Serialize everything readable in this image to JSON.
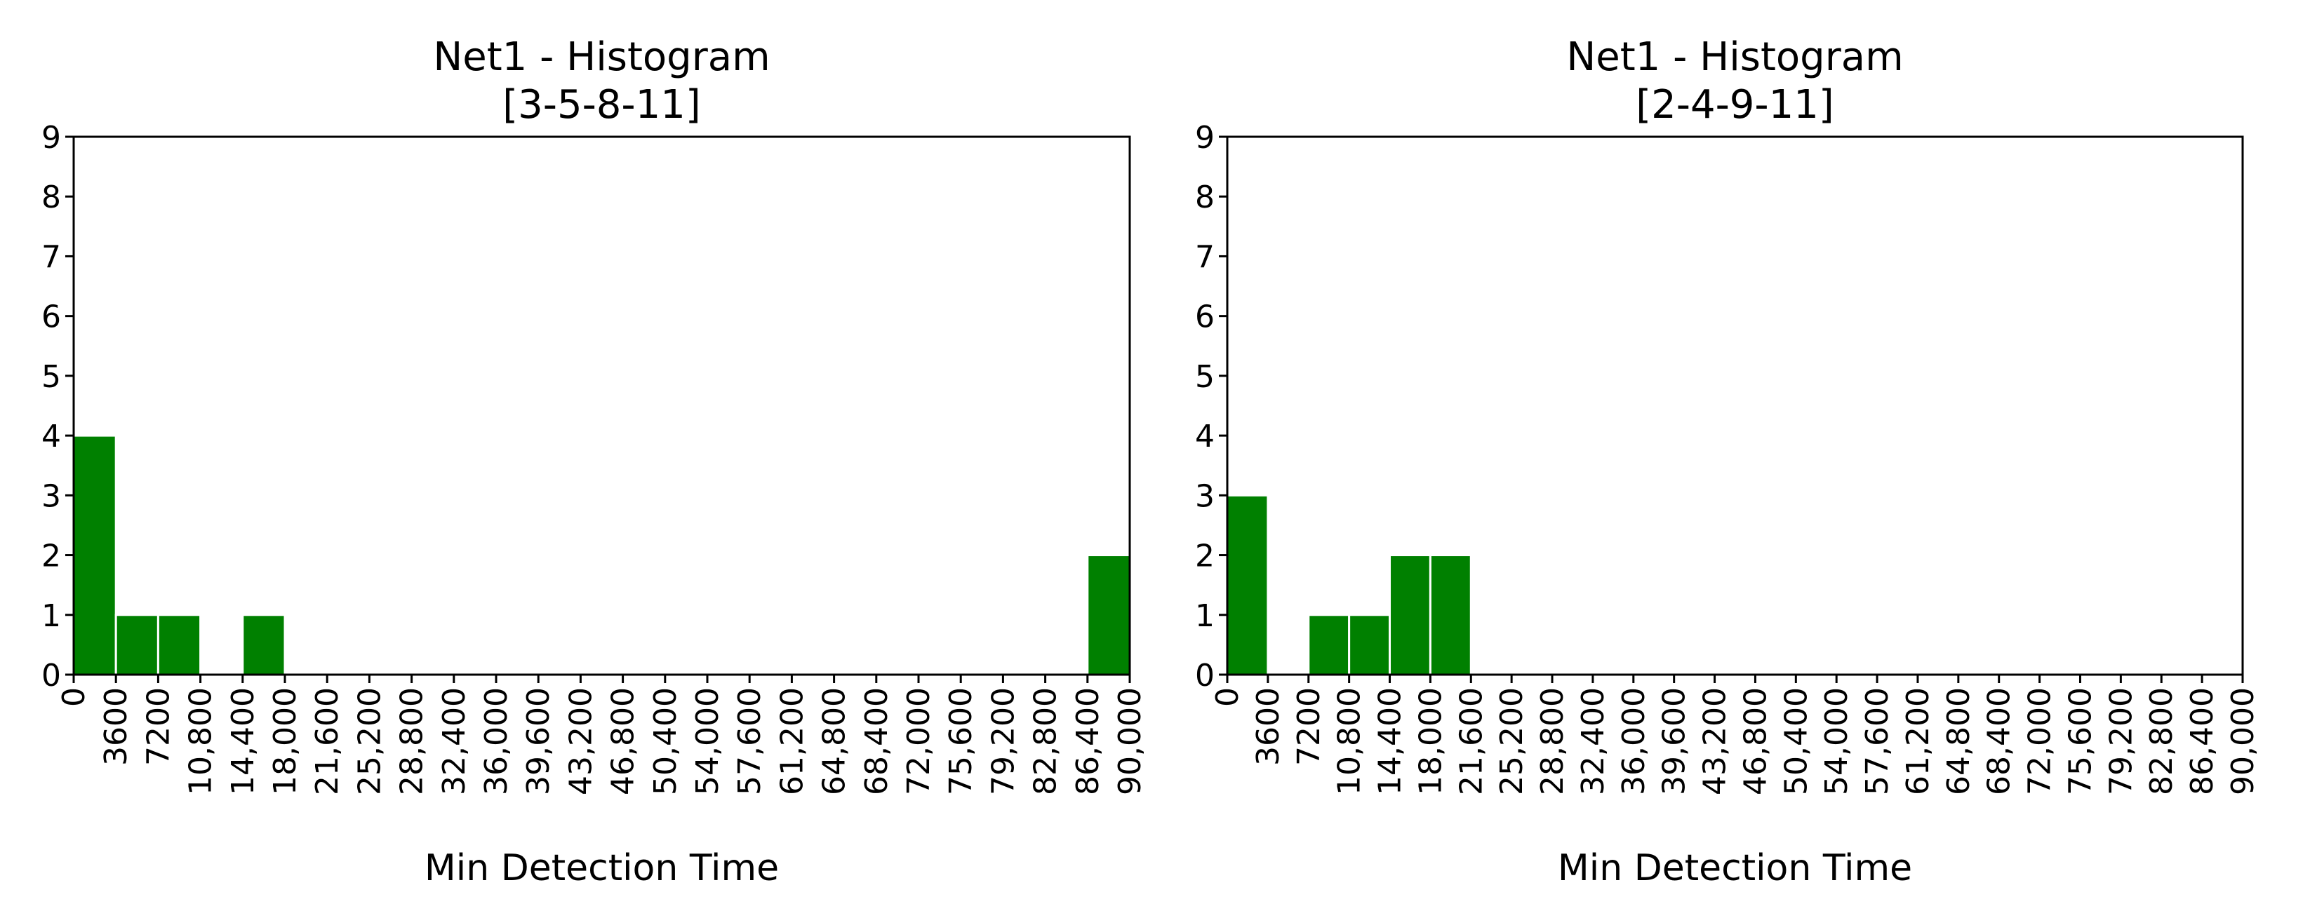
{
  "chart_data": [
    {
      "type": "histogram",
      "title": "Net1 - Histogram",
      "subtitle": "[3-5-8-11]",
      "x_label": "Min Detection Time",
      "color": "#008000",
      "bins": [
        0,
        3600,
        7200,
        10800,
        14400,
        18000,
        21600,
        25200,
        28800,
        32400,
        36000,
        39600,
        43200,
        46800,
        50400,
        54000,
        57600,
        61200,
        64800,
        68400,
        72000,
        75600,
        79200,
        82800,
        86400,
        90000
      ],
      "values": [
        4,
        1,
        1,
        0,
        1,
        0,
        0,
        0,
        0,
        0,
        0,
        0,
        0,
        0,
        0,
        0,
        0,
        0,
        0,
        0,
        0,
        0,
        0,
        0,
        2
      ],
      "xlim": [
        0,
        90000
      ],
      "ylim": [
        0,
        9
      ],
      "yticks": [
        0,
        1,
        2,
        3,
        4,
        5,
        6,
        7,
        8,
        9
      ],
      "xticks": [
        0,
        3600,
        7200,
        {
          "value": 10800,
          "label": "10,800"
        },
        {
          "value": 14400,
          "label": "14,400"
        },
        {
          "value": 18000,
          "label": "18,000"
        },
        {
          "value": 21600,
          "label": "21,600"
        },
        {
          "value": 25200,
          "label": "25,200"
        },
        {
          "value": 28800,
          "label": "28,800"
        },
        {
          "value": 32400,
          "label": "32,400"
        },
        {
          "value": 36000,
          "label": "36,000"
        },
        {
          "value": 39600,
          "label": "39,600"
        },
        {
          "value": 43200,
          "label": "43,200"
        },
        {
          "value": 46800,
          "label": "46,800"
        },
        {
          "value": 50400,
          "label": "50,400"
        },
        {
          "value": 54000,
          "label": "54,000"
        },
        {
          "value": 57600,
          "label": "57,600"
        },
        {
          "value": 61200,
          "label": "61,200"
        },
        {
          "value": 64800,
          "label": "64,800"
        },
        {
          "value": 68400,
          "label": "68,400"
        },
        {
          "value": 72000,
          "label": "72,000"
        },
        {
          "value": 75600,
          "label": "75,600"
        },
        {
          "value": 79200,
          "label": "79,200"
        },
        {
          "value": 82800,
          "label": "82,800"
        },
        {
          "value": 86400,
          "label": "86,400"
        },
        {
          "value": 90000,
          "label": "90,000"
        }
      ]
    },
    {
      "type": "histogram",
      "title": "Net1 - Histogram",
      "subtitle": "[2-4-9-11]",
      "x_label": "Min Detection Time",
      "color": "#008000",
      "bins": [
        0,
        3600,
        7200,
        10800,
        14400,
        18000,
        21600,
        25200,
        28800,
        32400,
        36000,
        39600,
        43200,
        46800,
        50400,
        54000,
        57600,
        61200,
        64800,
        68400,
        72000,
        75600,
        79200,
        82800,
        86400,
        90000
      ],
      "values": [
        3,
        0,
        1,
        1,
        2,
        2,
        0,
        0,
        0,
        0,
        0,
        0,
        0,
        0,
        0,
        0,
        0,
        0,
        0,
        0,
        0,
        0,
        0,
        0,
        0
      ],
      "xlim": [
        0,
        90000
      ],
      "ylim": [
        0,
        9
      ],
      "yticks": [
        0,
        1,
        2,
        3,
        4,
        5,
        6,
        7,
        8,
        9
      ],
      "xticks": [
        0,
        3600,
        7200,
        {
          "value": 10800,
          "label": "10,800"
        },
        {
          "value": 14400,
          "label": "14,400"
        },
        {
          "value": 18000,
          "label": "18,000"
        },
        {
          "value": 21600,
          "label": "21,600"
        },
        {
          "value": 25200,
          "label": "25,200"
        },
        {
          "value": 28800,
          "label": "28,800"
        },
        {
          "value": 32400,
          "label": "32,400"
        },
        {
          "value": 36000,
          "label": "36,000"
        },
        {
          "value": 39600,
          "label": "39,600"
        },
        {
          "value": 43200,
          "label": "43,200"
        },
        {
          "value": 46800,
          "label": "46,800"
        },
        {
          "value": 50400,
          "label": "50,400"
        },
        {
          "value": 54000,
          "label": "54,000"
        },
        {
          "value": 57600,
          "label": "57,600"
        },
        {
          "value": 61200,
          "label": "61,200"
        },
        {
          "value": 64800,
          "label": "64,800"
        },
        {
          "value": 68400,
          "label": "68,400"
        },
        {
          "value": 72000,
          "label": "72,000"
        },
        {
          "value": 75600,
          "label": "75,600"
        },
        {
          "value": 79200,
          "label": "79,200"
        },
        {
          "value": 82800,
          "label": "82,800"
        },
        {
          "value": 86400,
          "label": "86,400"
        },
        {
          "value": 90000,
          "label": "90,000"
        }
      ]
    }
  ]
}
